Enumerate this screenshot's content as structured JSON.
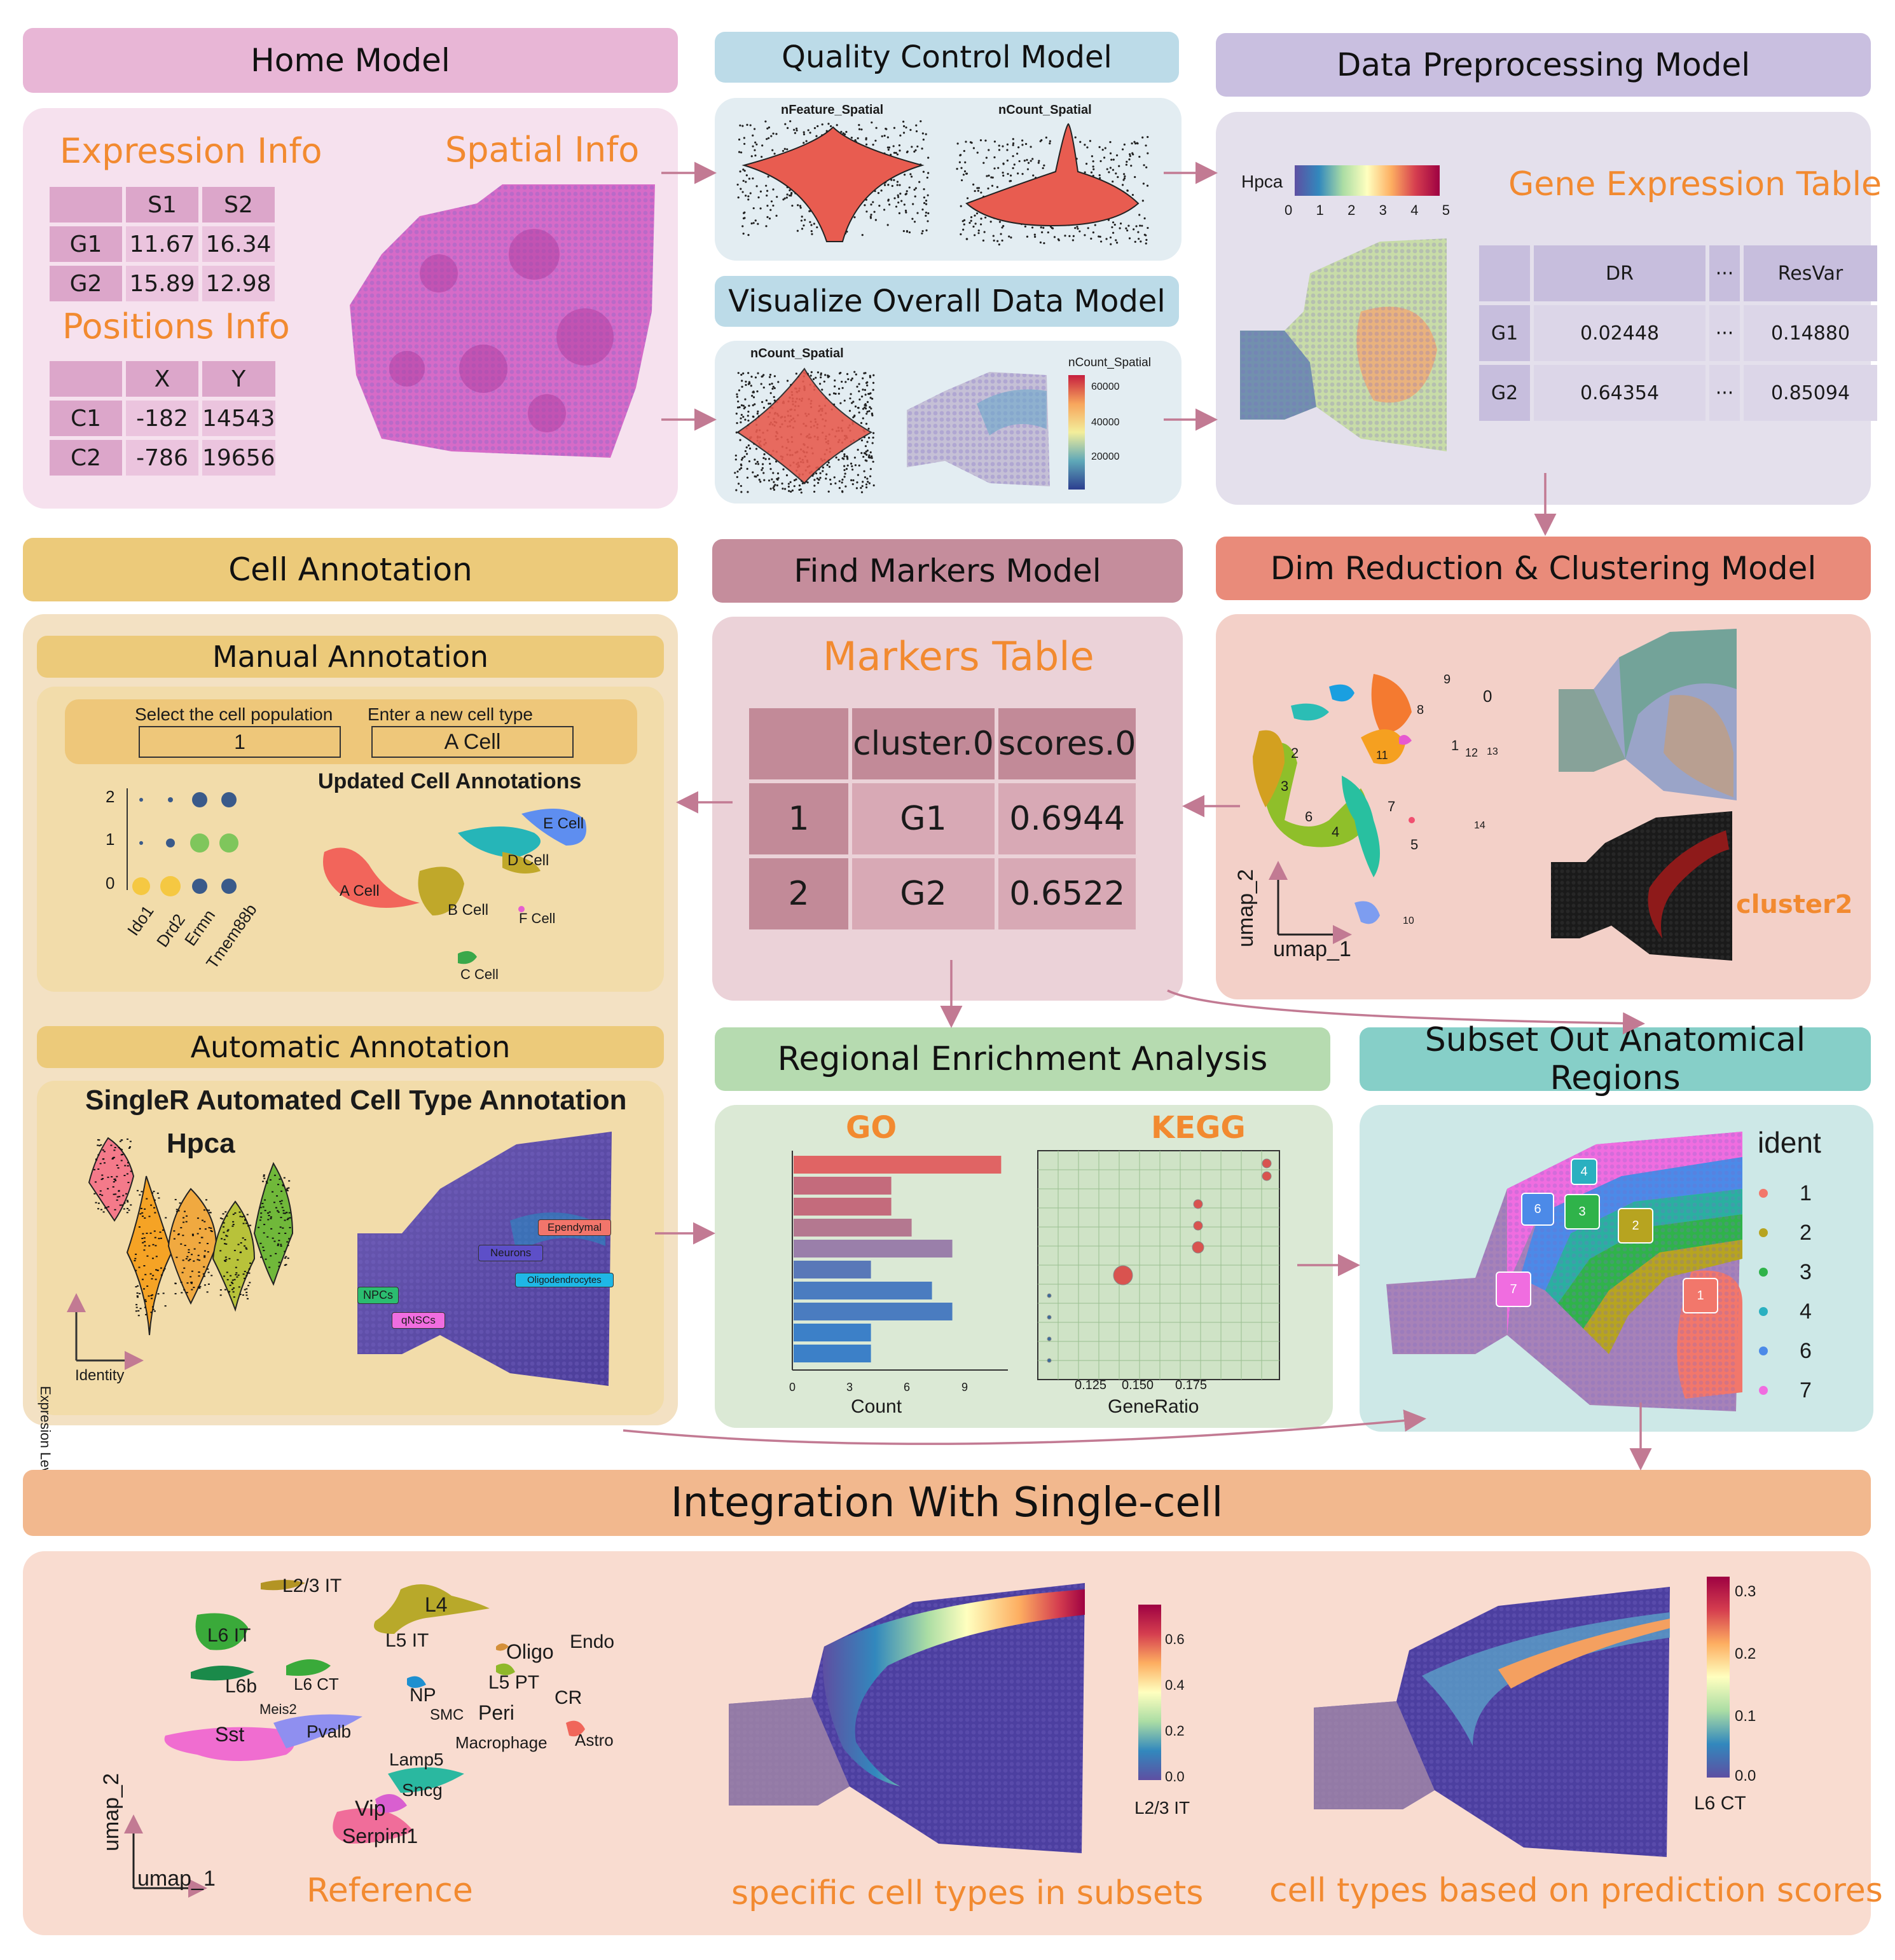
{
  "home": {
    "title": "Home Model",
    "expression_title": "Expression Info",
    "spatial_title": "Spatial Info",
    "positions_title": "Positions Info",
    "expr_table": {
      "header": [
        "",
        "S1",
        "S2"
      ],
      "rows": [
        [
          "G1",
          "11.67",
          "16.34"
        ],
        [
          "G2",
          "15.89",
          "12.98"
        ]
      ]
    },
    "pos_table": {
      "header": [
        "",
        "X",
        "Y"
      ],
      "rows": [
        [
          "C1",
          "-182",
          "14543"
        ],
        [
          "C2",
          "-786",
          "19656"
        ]
      ]
    }
  },
  "qc": {
    "title": "Quality Control Model",
    "label1": "nFeature_Spatial",
    "label2": "nCount_Spatial"
  },
  "viz": {
    "title": "Visualize Overall Data Model",
    "label1": "nCount_Spatial",
    "legend_title": "nCount_Spatial",
    "legend_ticks": [
      "60000",
      "40000",
      "20000"
    ]
  },
  "prep": {
    "title": "Data Preprocessing Model",
    "legend_label": "Hpca",
    "legend_ticks": [
      "0",
      "1",
      "2",
      "3",
      "4",
      "5"
    ],
    "table_title": "Gene Expression Table",
    "table": {
      "header": [
        "",
        "DR",
        "···",
        "ResVar"
      ],
      "rows": [
        [
          "G1",
          "0.02448",
          "···",
          "0.14880"
        ],
        [
          "G2",
          "0.64354",
          "···",
          "0.85094"
        ]
      ]
    }
  },
  "cell": {
    "title": "Cell Annotation",
    "manual_title": "Manual Annotation",
    "select_label": "Select the cell population",
    "select_value": "1",
    "enter_label": "Enter a new cell type",
    "enter_value": "A Cell",
    "updated_title": "Updated Cell Annotations",
    "dot_y": [
      "2",
      "1",
      "0"
    ],
    "dot_genes": [
      "Ido1",
      "Drd2",
      "Ermn",
      "Tmem88b"
    ],
    "umap_labels": [
      "E Cell",
      "D Cell",
      "A Cell",
      "B Cell",
      "F Cell",
      "C Cell"
    ],
    "auto_title": "Automatic Annotation",
    "singler_title": "SingleR Automated Cell Type Annotation",
    "violin_gene": "Hpca",
    "violin_ylabel": "Expresion Level",
    "violin_xlabel": "Identity",
    "spatial_labels": [
      "Ependymal",
      "Neurons",
      "Oligodendrocytes",
      "NPCs",
      "qNSCs"
    ]
  },
  "markers": {
    "title": "Find Markers Model",
    "table_title": "Markers Table",
    "table": {
      "header": [
        "",
        "cluster.0",
        "scores.0"
      ],
      "rows": [
        [
          "1",
          "G1",
          "0.6944"
        ],
        [
          "2",
          "G2",
          "0.6522"
        ]
      ]
    }
  },
  "dim": {
    "title": "Dim Reduction & Clustering Model",
    "xlabel": "umap_1",
    "ylabel": "umap_2",
    "cluster_labels": [
      "9",
      "0",
      "8",
      "2",
      "11",
      "1",
      "12",
      "13",
      "3",
      "7",
      "6",
      "4",
      "14",
      "5",
      "10"
    ],
    "cluster2_label": "cluster2"
  },
  "rea": {
    "title": "Regional Enrichment Analysis",
    "go_title": "GO",
    "kegg_title": "KEGG",
    "go_xlabel": "Count",
    "go_ticks": [
      "0",
      "3",
      "6",
      "9"
    ],
    "kegg_xlabel": "GeneRatio",
    "kegg_ticks": [
      "0.125",
      "0.150",
      "0.175"
    ]
  },
  "subset": {
    "title": "Subset Out Anatomical Regions",
    "legend_title": "ident",
    "legend_items": [
      "1",
      "2",
      "3",
      "4",
      "6",
      "7"
    ],
    "region_labels": [
      "4",
      "6",
      "3",
      "2",
      "7",
      "1"
    ]
  },
  "integration": {
    "title": "Integration With Single-cell",
    "ref_labels": [
      "L2/3 IT",
      "L4",
      "L6 IT",
      "L5 IT",
      "Oligo",
      "Endo",
      "L6b",
      "L6 CT",
      "NP",
      "L5 PT",
      "CR",
      "Meis2",
      "SMC",
      "Peri",
      "Sst",
      "Pvalb",
      "Macrophage",
      "Astro",
      "Lamp5",
      "Sncg",
      "Vip",
      "Serpinf1"
    ],
    "ref_xlabel": "umap_1",
    "ref_ylabel": "umap_2",
    "ref_caption": "Reference",
    "mid_caption": "specific cell types in subsets",
    "mid_legend_ticks": [
      "0.6",
      "0.4",
      "0.2",
      "0.0"
    ],
    "mid_legend_title": "L2/3 IT",
    "right_caption": "cell types based on prediction scores",
    "right_legend_ticks": [
      "0.3",
      "0.2",
      "0.1",
      "0.0"
    ],
    "right_legend_title": "L6 CT"
  },
  "colors": {
    "home": "#e8b6d6",
    "qc": "#bcdbe8",
    "prep": "#c9bfe0",
    "cell": "#ecca7a",
    "markers": "#c58d9c",
    "dim": "#e98b7a",
    "rea": "#b6dbb0",
    "subset": "#86cfc8",
    "integration": "#f2b88e",
    "arrow": "#d77a86"
  }
}
